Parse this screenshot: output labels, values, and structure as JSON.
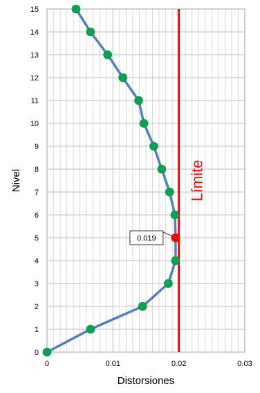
{
  "chart_data": {
    "type": "line",
    "xlabel": "Distorsiones",
    "ylabel": "Nivel",
    "xlim": [
      0,
      0.03
    ],
    "ylim": [
      0,
      15
    ],
    "x_ticks": [
      "0",
      "0.01",
      "0.02",
      "0.03"
    ],
    "y_ticks": [
      "0",
      "1",
      "2",
      "3",
      "4",
      "5",
      "6",
      "7",
      "8",
      "9",
      "10",
      "11",
      "12",
      "13",
      "14",
      "15"
    ],
    "grid": true,
    "series": [
      {
        "x": [
          0,
          0.0066,
          0.0145,
          0.0184,
          0.0195,
          0.0195,
          0.0194,
          0.0186,
          0.0174,
          0.0162,
          0.0147,
          0.0139,
          0.0115,
          0.0092,
          0.0066,
          0.0044
        ],
        "y": [
          0,
          1,
          2,
          3,
          4,
          5,
          6,
          7,
          8,
          9,
          10,
          11,
          12,
          13,
          14,
          15
        ],
        "line_color": "#4f81bd",
        "marker_color": "#00a651"
      }
    ],
    "limit": {
      "x": 0.02,
      "label": "Límite",
      "color": "#ff0000"
    },
    "annotation": {
      "x": 0.0195,
      "y": 5,
      "text": "0.019",
      "marker_color": "#ff0000"
    }
  }
}
